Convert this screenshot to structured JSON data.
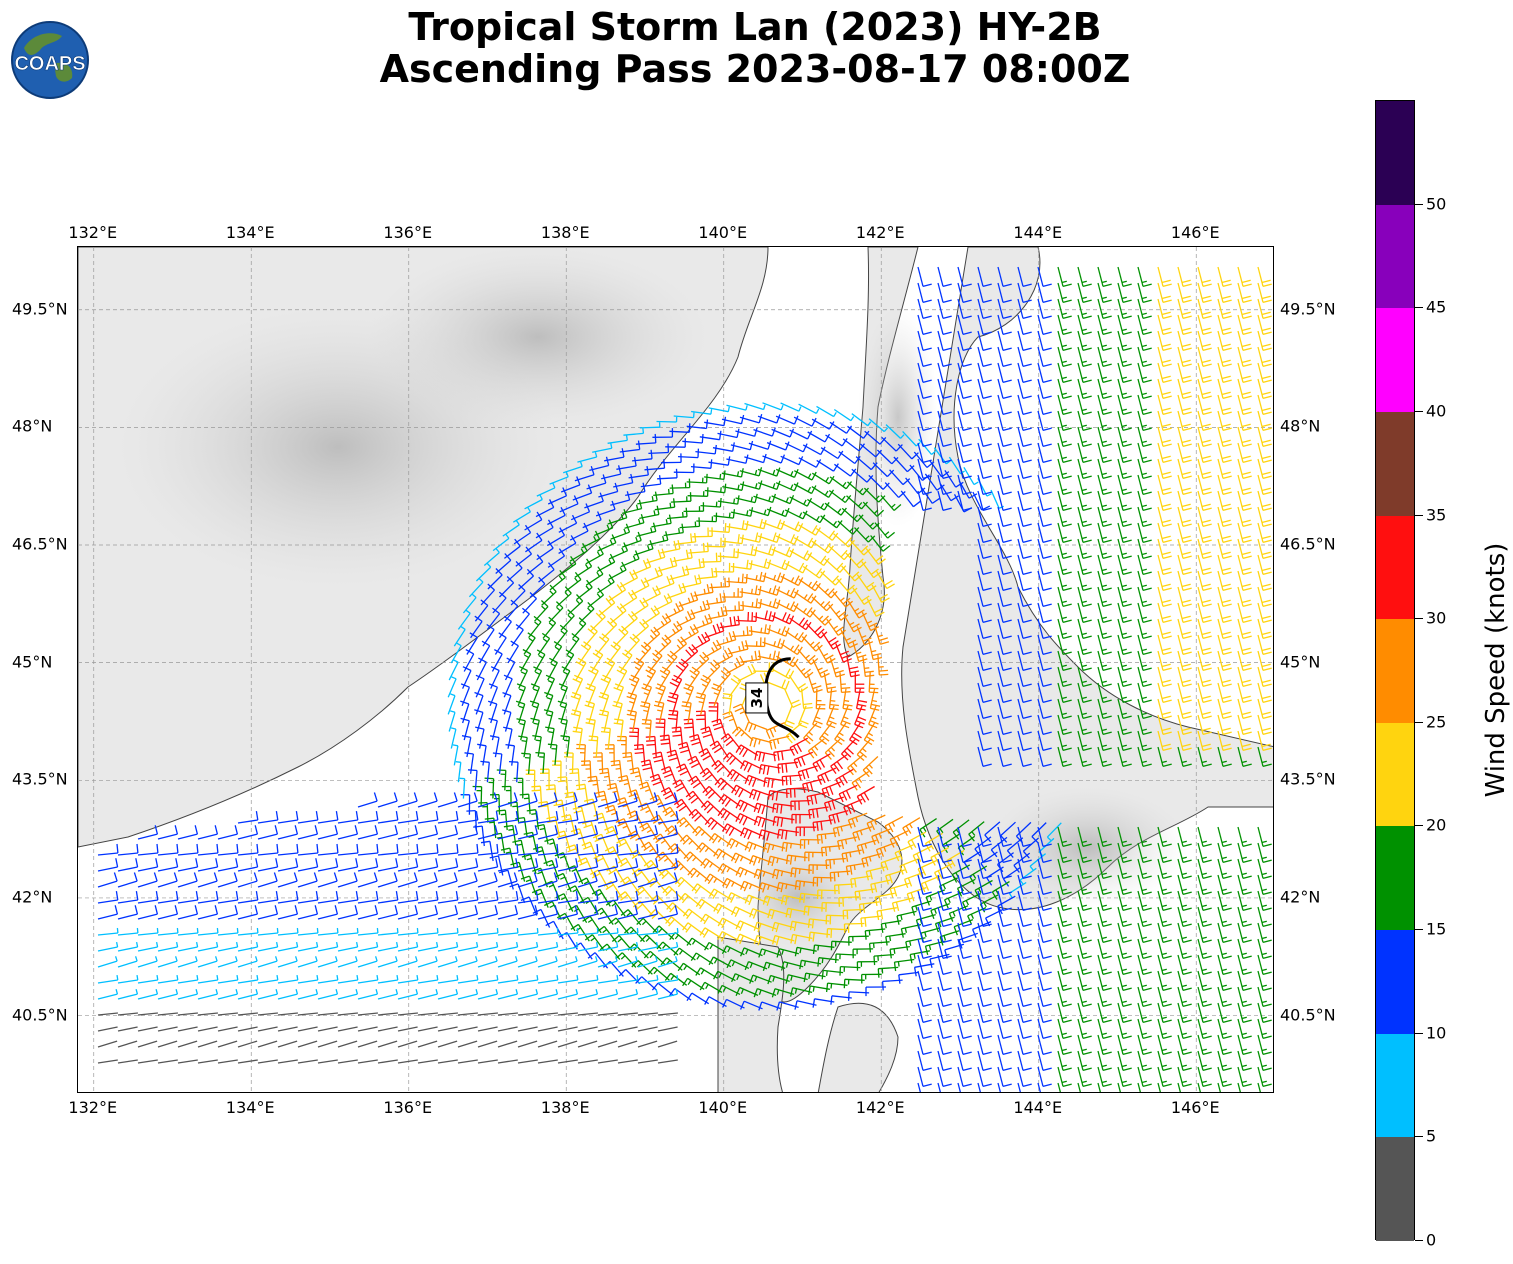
{
  "title": {
    "line1": "Tropical Storm Lan (2023) HY-2B",
    "line2": "Ascending Pass 2023-08-17 08:00Z"
  },
  "logo": {
    "text": "COAPS"
  },
  "map": {
    "lon_ticks": [
      "132°E",
      "134°E",
      "136°E",
      "138°E",
      "140°E",
      "142°E",
      "144°E",
      "146°E"
    ],
    "lat_ticks": [
      "49.5°N",
      "48°N",
      "46.5°N",
      "45°N",
      "43.5°N",
      "42°N",
      "40.5°N"
    ],
    "extent": {
      "lon": [
        131.8,
        147.0
      ],
      "lat": [
        39.5,
        50.3
      ]
    },
    "storm_center": {
      "lon": 140.55,
      "lat": 44.45
    },
    "contour_label": "34",
    "gridlines": "dashed"
  },
  "colorbar": {
    "title": "Wind Speed (knots)",
    "tick_labels": [
      "0",
      "5",
      "10",
      "15",
      "20",
      "25",
      "30",
      "35",
      "40",
      "45",
      "50"
    ],
    "bins": [
      {
        "range": [
          0,
          5
        ],
        "color": "#555555"
      },
      {
        "range": [
          5,
          10
        ],
        "color": "#00bfff"
      },
      {
        "range": [
          10,
          15
        ],
        "color": "#0033ff"
      },
      {
        "range": [
          15,
          20
        ],
        "color": "#009100"
      },
      {
        "range": [
          20,
          25
        ],
        "color": "#ffd40f"
      },
      {
        "range": [
          25,
          30
        ],
        "color": "#ff8c00"
      },
      {
        "range": [
          30,
          35
        ],
        "color": "#ff0f0f"
      },
      {
        "range": [
          35,
          40
        ],
        "color": "#7f3b2a"
      },
      {
        "range": [
          40,
          45
        ],
        "color": "#ff00ff"
      },
      {
        "range": [
          45,
          50
        ],
        "color": "#8800bb"
      },
      {
        "range": [
          50,
          55
        ],
        "color": "#2b0054"
      }
    ]
  }
}
